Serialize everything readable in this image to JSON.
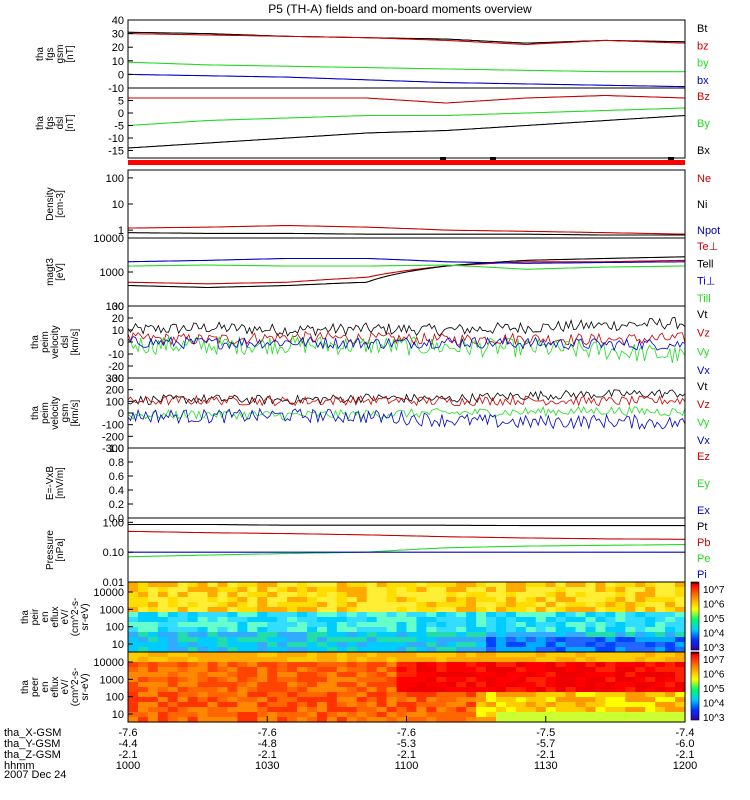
{
  "title": "P5 (TH-A) fields and on-board moments overview",
  "footer": {
    "rows": [
      {
        "label": "tha_X-GSM",
        "values": [
          "-7.6",
          "-7.6",
          "-7.6",
          "-7.5",
          "-7.4"
        ]
      },
      {
        "label": "tha_Y-GSM",
        "values": [
          "-4.4",
          "-4.8",
          "-5.3",
          "-5.7",
          "-6.0"
        ]
      },
      {
        "label": "tha_Z-GSM",
        "values": [
          "-2.1",
          "-2.1",
          "-2.1",
          "-2.1",
          "-2.1"
        ]
      },
      {
        "label": "hhmm",
        "values": [
          "1000",
          "1030",
          "1100",
          "1130",
          "1200"
        ]
      }
    ],
    "date": "2007 Dec 24"
  },
  "colorbar": {
    "labels": [
      "10^7",
      "10^6",
      "10^5",
      "10^4",
      "10^3"
    ]
  },
  "colors": {
    "black": "#000000",
    "red": "#cc0000",
    "green": "#22dd22",
    "blue": "#0000cc"
  },
  "chart_data": {
    "type": "multi-panel time series",
    "x_axis": {
      "label": "hhmm",
      "range": [
        "1000",
        "1200"
      ]
    },
    "panels": [
      {
        "id": "fgs-gsm",
        "ylabel": [
          "tha",
          "fgs",
          "gsm",
          "[nT]"
        ],
        "ylim": [
          -10,
          40
        ],
        "yticks": [
          "40",
          "30",
          "20",
          "10",
          "0",
          "-10"
        ],
        "series": [
          {
            "name": "Bt",
            "color": "black",
            "values": [
              31,
              30,
              28,
              27,
              26,
              23,
              25,
              24
            ]
          },
          {
            "name": "bz",
            "color": "red",
            "values": [
              30,
              29,
              28,
              27,
              25,
              22,
              25,
              23
            ]
          },
          {
            "name": "by",
            "color": "green",
            "values": [
              9,
              7,
              6,
              5,
              4,
              3,
              2,
              2
            ]
          },
          {
            "name": "bx",
            "color": "blue",
            "values": [
              0,
              -1,
              -2,
              -4,
              -6,
              -7,
              -8,
              -9
            ]
          }
        ]
      },
      {
        "id": "fgs-dsl",
        "ylabel": [
          "tha",
          "fgs",
          "dsl",
          "[nT]"
        ],
        "ylim": [
          -18,
          10
        ],
        "yticks": [
          "5",
          "0",
          "-5",
          "-10",
          "-15"
        ],
        "series": [
          {
            "name": "Bz",
            "color": "red",
            "values": [
              6,
              6,
              6,
              6,
              4,
              6,
              7,
              6
            ]
          },
          {
            "name": "By",
            "color": "green",
            "values": [
              -5,
              -3,
              -2,
              -1,
              -1,
              0,
              1,
              2
            ]
          },
          {
            "name": "Bx",
            "color": "black",
            "values": [
              -14,
              -12,
              -10,
              -8,
              -7,
              -5,
              -3,
              -1
            ]
          }
        ]
      },
      {
        "id": "density",
        "ylabel": [
          "Density",
          "[cm-3]"
        ],
        "scale": "log",
        "ylim": [
          0.5,
          200
        ],
        "yticks": [
          "100",
          "10",
          "1"
        ],
        "series": [
          {
            "name": "Ne",
            "color": "red",
            "values": [
              1.2,
              1.3,
              1.5,
              1.3,
              1.0,
              0.9,
              0.8,
              0.7
            ]
          },
          {
            "name": "Ni",
            "color": "black",
            "values": [
              0.8,
              0.75,
              0.75,
              0.7,
              0.7,
              0.7,
              0.65,
              0.65
            ]
          },
          {
            "name": "Npot",
            "color": "blue",
            "values": []
          }
        ]
      },
      {
        "id": "temperature",
        "ylabel": [
          "magt3",
          "[eV]"
        ],
        "scale": "log",
        "ylim": [
          100,
          10000
        ],
        "yticks": [
          "10000",
          "1000",
          "100"
        ],
        "series": [
          {
            "name": "Te⊥",
            "color": "red",
            "values": [
              500,
              450,
              500,
              700,
              1500,
              2000,
              2000,
              2200
            ]
          },
          {
            "name": "Tell",
            "color": "black",
            "values": [
              400,
              350,
              400,
              500,
              1500,
              2200,
              2500,
              2800
            ]
          },
          {
            "name": "Ti⊥",
            "color": "blue",
            "values": [
              2000,
              2200,
              2500,
              2500,
              2000,
              1800,
              1900,
              2000
            ]
          },
          {
            "name": "Till",
            "color": "green",
            "values": [
              1500,
              1600,
              1500,
              1500,
              1600,
              1200,
              1400,
              1500
            ]
          }
        ]
      },
      {
        "id": "peim-velocity-dsl",
        "ylabel": [
          "tha",
          "peim",
          "velocity",
          "dsl",
          "[km/s]"
        ],
        "ylim": [
          -30,
          30
        ],
        "yticks": [
          "30",
          "20",
          "10",
          "0",
          "-10",
          "-20",
          "-30"
        ],
        "series": [
          {
            "name": "Vt",
            "color": "black",
            "values": [
              10,
              12,
              10,
              11,
              10,
              12,
              14,
              16
            ]
          },
          {
            "name": "Vz",
            "color": "red",
            "values": [
              3,
              2,
              4,
              3,
              2,
              3,
              2,
              3
            ]
          },
          {
            "name": "Vy",
            "color": "green",
            "values": [
              -2,
              -3,
              -2,
              -3,
              -4,
              -5,
              -7,
              -12
            ]
          },
          {
            "name": "Vx",
            "color": "blue",
            "values": [
              0,
              -1,
              0,
              -1,
              0,
              -1,
              -2,
              -2
            ]
          }
        ]
      },
      {
        "id": "peim-velocity-gsm",
        "ylabel": [
          "tha",
          "peim",
          "velocity",
          "gsm",
          "[km/s]"
        ],
        "ylim": [
          -300,
          300
        ],
        "yticks": [
          "300",
          "200",
          "100",
          "0",
          "-100",
          "-200",
          "-300"
        ],
        "series": [
          {
            "name": "Vt",
            "color": "black",
            "values": [
              110,
              120,
              110,
              130,
              120,
              150,
              160,
              170
            ]
          },
          {
            "name": "Vz",
            "color": "red",
            "values": [
              100,
              110,
              100,
              110,
              100,
              110,
              100,
              110
            ]
          },
          {
            "name": "Vy",
            "color": "green",
            "values": [
              -20,
              -10,
              -20,
              -10,
              0,
              10,
              20,
              10
            ]
          },
          {
            "name": "Vx",
            "color": "blue",
            "values": [
              -20,
              -30,
              -20,
              -30,
              -60,
              -80,
              -70,
              -90
            ]
          }
        ]
      },
      {
        "id": "e-vxb",
        "ylabel": [
          "E=-VxB",
          "[mV/m]"
        ],
        "ylim": [
          0,
          1
        ],
        "yticks": [
          "1.0",
          "0.8",
          "0.6",
          "0.4",
          "0.2",
          "0.0"
        ],
        "series": [
          {
            "name": "Ez",
            "color": "red",
            "values": []
          },
          {
            "name": "Ey",
            "color": "green",
            "values": []
          },
          {
            "name": "Ex",
            "color": "blue",
            "values": []
          }
        ]
      },
      {
        "id": "pressure",
        "ylabel": [
          "Pressure",
          "[nPa]"
        ],
        "scale": "log",
        "ylim": [
          0.01,
          1.4
        ],
        "yticks": [
          "1.00",
          "0.10",
          "0.01"
        ],
        "series": [
          {
            "name": "Pt",
            "color": "black",
            "values": [
              0.85,
              0.85,
              0.8,
              0.8,
              0.8,
              0.78,
              0.78,
              0.78
            ]
          },
          {
            "name": "Pb",
            "color": "red",
            "values": [
              0.5,
              0.45,
              0.42,
              0.38,
              0.33,
              0.3,
              0.28,
              0.27
            ]
          },
          {
            "name": "Pe",
            "color": "green",
            "values": [
              0.07,
              0.08,
              0.09,
              0.1,
              0.14,
              0.16,
              0.17,
              0.18
            ]
          },
          {
            "name": "Pi",
            "color": "blue",
            "values": [
              0.1,
              0.1,
              0.1,
              0.1,
              0.1,
              0.1,
              0.1,
              0.1
            ]
          }
        ]
      },
      {
        "id": "peir-en-eflux",
        "type": "heatmap",
        "ylabel": [
          "tha",
          "peir",
          "en",
          "eflux",
          "eV/",
          "(cm^2-s-",
          "sr-eV)"
        ],
        "yticks": [
          "10000",
          "1000",
          "100",
          "10"
        ],
        "description_levels": {
          "low_energy": "1e4-1e5",
          "high_energy": "1e6-1e7"
        }
      },
      {
        "id": "peer-en-eflux",
        "type": "heatmap",
        "ylabel": [
          "tha",
          "peer",
          "en",
          "eflux",
          "eV/",
          "(cm^2-s-",
          "sr-eV)"
        ],
        "yticks": [
          "10000",
          "1000",
          "100",
          "10"
        ],
        "description_levels": {
          "low_energy": "1e6-1e7",
          "high_energy": "1e7"
        }
      }
    ]
  }
}
